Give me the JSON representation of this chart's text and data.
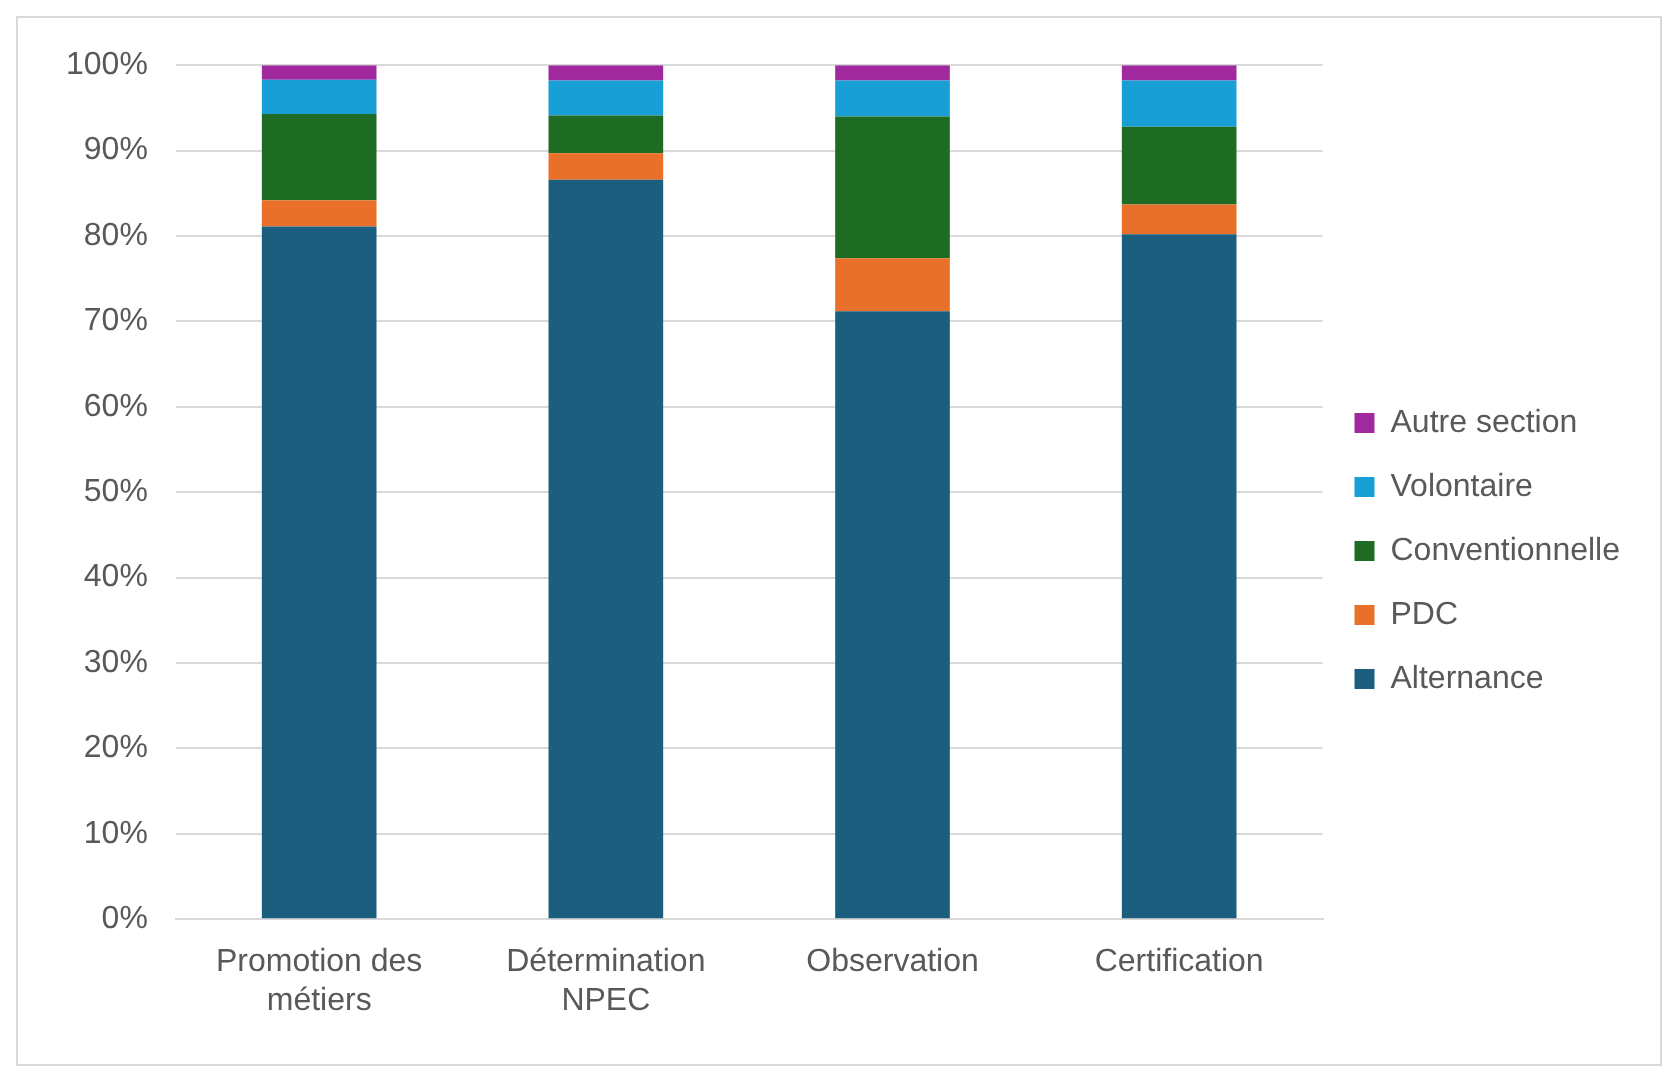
{
  "chart_data": {
    "type": "bar",
    "stacked": true,
    "categories": [
      [
        "Promotion des",
        "métiers"
      ],
      [
        "Détermination",
        "NPEC"
      ],
      [
        "Observation"
      ],
      [
        "Certification"
      ]
    ],
    "series": [
      {
        "name": "Alternance",
        "color": "#1b5e7e",
        "values": [
          81.1,
          86.6,
          71.2,
          80.2
        ]
      },
      {
        "name": "PDC",
        "color": "#e8702a",
        "values": [
          3.1,
          3.1,
          6.2,
          3.5
        ]
      },
      {
        "name": "Conventionnelle",
        "color": "#1e6b24",
        "values": [
          10.1,
          4.4,
          16.6,
          9.1
        ]
      },
      {
        "name": "Volontaire",
        "color": "#189fd6",
        "values": [
          4.0,
          4.1,
          4.2,
          5.4
        ]
      },
      {
        "name": "Autre section",
        "color": "#a0299e",
        "values": [
          1.7,
          1.8,
          1.8,
          1.8
        ]
      }
    ],
    "ylim": [
      0,
      100
    ],
    "yticks": [
      {
        "value": 0,
        "label": "0%"
      },
      {
        "value": 10,
        "label": "10%"
      },
      {
        "value": 20,
        "label": "20%"
      },
      {
        "value": 30,
        "label": "30%"
      },
      {
        "value": 40,
        "label": "40%"
      },
      {
        "value": 50,
        "label": "50%"
      },
      {
        "value": 60,
        "label": "60%"
      },
      {
        "value": 70,
        "label": "70%"
      },
      {
        "value": 80,
        "label": "80%"
      },
      {
        "value": 90,
        "label": "90%"
      },
      {
        "value": 100,
        "label": "100%"
      }
    ],
    "grid": "y",
    "legend": "right"
  }
}
